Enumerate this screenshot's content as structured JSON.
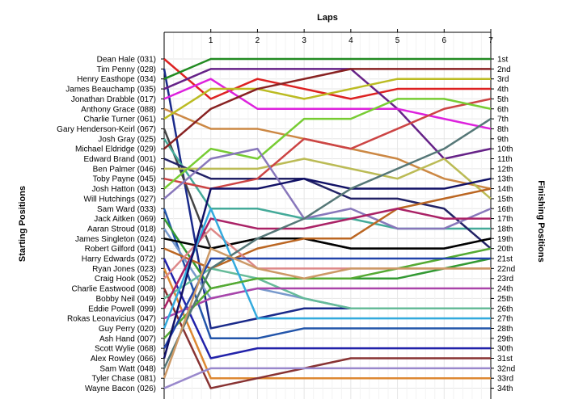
{
  "chart_data": {
    "type": "line",
    "title": "",
    "xlabel": "Laps",
    "ylabel_left": "Starting Positions",
    "ylabel_right": "Finishing Positions",
    "laps": [
      0,
      1,
      2,
      3,
      4,
      5,
      6,
      7
    ],
    "x_tick_labels": [
      "1",
      "2",
      "3",
      "4",
      "5",
      "6",
      "7"
    ],
    "finishing_labels": [
      "1st",
      "2nd",
      "3rd",
      "4th",
      "5th",
      "6th",
      "7th",
      "8th",
      "9th",
      "10th",
      "11th",
      "12th",
      "13th",
      "14th",
      "15th",
      "16th",
      "17th",
      "18th",
      "19th",
      "20th",
      "21st",
      "22nd",
      "23rd",
      "24th",
      "25th",
      "26th",
      "27th",
      "28th",
      "29th",
      "30th",
      "31st",
      "32nd",
      "33rd",
      "34th"
    ],
    "grid": true,
    "series": [
      {
        "name": "Dean Hale (031)",
        "color": "#dd2222",
        "positions": [
          1,
          5,
          3,
          4,
          5,
          4,
          4,
          4
        ]
      },
      {
        "name": "Tim Penny (028)",
        "color": "#1a2a8a",
        "positions": [
          2,
          28,
          27,
          26,
          26,
          26,
          26,
          26
        ]
      },
      {
        "name": "Henry Easthope (034)",
        "color": "#228b22",
        "positions": [
          3,
          1,
          1,
          1,
          1,
          1,
          1,
          1
        ]
      },
      {
        "name": "James Beauchamp (035)",
        "color": "#662288",
        "positions": [
          4,
          2,
          2,
          2,
          2,
          6,
          11,
          10
        ]
      },
      {
        "name": "Jonathan Drabble (017)",
        "color": "#dd22dd",
        "positions": [
          5,
          3,
          6,
          6,
          6,
          6,
          7,
          8
        ]
      },
      {
        "name": "Anthony Grace (088)",
        "color": "#cc8844",
        "positions": [
          6,
          8,
          8,
          9,
          10,
          11,
          13,
          14
        ]
      },
      {
        "name": "Charlie Turner (061)",
        "color": "#bbbb22",
        "positions": [
          7,
          4,
          4,
          5,
          4,
          3,
          3,
          3
        ]
      },
      {
        "name": "Gary Henderson-Keirl (067)",
        "color": "#444444",
        "positions": [
          8,
          20,
          19,
          19,
          20,
          20,
          20,
          19
        ]
      },
      {
        "name": "Josh Gray (025)",
        "color": "#44aa99",
        "positions": [
          9,
          16,
          16,
          17,
          17,
          18,
          18,
          18
        ]
      },
      {
        "name": "Michael Eldridge (029)",
        "color": "#882222",
        "positions": [
          10,
          6,
          4,
          3,
          2,
          2,
          2,
          2
        ]
      },
      {
        "name": "Edward Brand (001)",
        "color": "#222266",
        "positions": [
          11,
          13,
          13,
          13,
          15,
          15,
          16,
          20
        ]
      },
      {
        "name": "Ben Palmer (046)",
        "color": "#bbbb55",
        "positions": [
          12,
          12,
          12,
          11,
          12,
          13,
          11,
          15
        ]
      },
      {
        "name": "Toby Payne (045)",
        "color": "#cc4444",
        "positions": [
          13,
          14,
          13,
          9,
          10,
          8,
          6,
          5
        ]
      },
      {
        "name": "Josh Hatton (043)",
        "color": "#77cc33",
        "positions": [
          14,
          10,
          11,
          7,
          7,
          5,
          5,
          6
        ]
      },
      {
        "name": "Will Hutchings (027)",
        "color": "#8877bb",
        "positions": [
          15,
          11,
          10,
          17,
          16,
          18,
          18,
          16
        ]
      },
      {
        "name": "Sam Ward (033)",
        "color": "#2255aa",
        "positions": [
          16,
          29,
          29,
          28,
          28,
          28,
          28,
          28
        ]
      },
      {
        "name": "Jack Aitken (069)",
        "color": "#339933",
        "positions": [
          17,
          24,
          23,
          23,
          23,
          23,
          22,
          21
        ]
      },
      {
        "name": "Aaran Stroud (018)",
        "color": "#7799cc",
        "positions": [
          18,
          25,
          24,
          25,
          26,
          26,
          26,
          26
        ]
      },
      {
        "name": "James Singleton (024)",
        "color": "#000000",
        "positions": [
          19,
          20,
          19,
          19,
          20,
          20,
          20,
          19
        ]
      },
      {
        "name": "Robert Gilford (041)",
        "color": "#bb6622",
        "positions": [
          20,
          22,
          20,
          19,
          19,
          16,
          15,
          14
        ]
      },
      {
        "name": "Harry Edwards (072)",
        "color": "#2222aa",
        "positions": [
          21,
          31,
          30,
          30,
          30,
          30,
          30,
          30
        ]
      },
      {
        "name": "Ryan Jones (023)",
        "color": "#dd8833",
        "positions": [
          22,
          33,
          33,
          33,
          33,
          33,
          33,
          33
        ]
      },
      {
        "name": "Craig Hook (052)",
        "color": "#dd8888",
        "positions": [
          23,
          18,
          22,
          22,
          22,
          22,
          22,
          22
        ]
      },
      {
        "name": "Charlie Eastwood (008)",
        "color": "#883333",
        "positions": [
          24,
          34,
          33,
          32,
          31,
          31,
          31,
          31
        ]
      },
      {
        "name": "Bobby Neil (049)",
        "color": "#66bb99",
        "positions": [
          25,
          22,
          23,
          25,
          26,
          26,
          26,
          26
        ]
      },
      {
        "name": "Eddie Powell (099)",
        "color": "#aa2266",
        "positions": [
          26,
          17,
          18,
          18,
          17,
          16,
          17,
          17
        ]
      },
      {
        "name": "Rokas Leonavicius (047)",
        "color": "#aa44aa",
        "positions": [
          27,
          25,
          24,
          24,
          24,
          24,
          24,
          24
        ]
      },
      {
        "name": "Guy Perry (020)",
        "color": "#33aadd",
        "positions": [
          28,
          16,
          27,
          27,
          27,
          27,
          27,
          27
        ]
      },
      {
        "name": "Ash Hand (007)",
        "color": "#55aa33",
        "positions": [
          29,
          24,
          23,
          23,
          23,
          22,
          21,
          20
        ]
      },
      {
        "name": "Scott Wylie (068)",
        "color": "#2244aa",
        "positions": [
          30,
          21,
          21,
          21,
          21,
          21,
          21,
          21
        ]
      },
      {
        "name": "Alex Rowley (066)",
        "color": "#111166",
        "positions": [
          31,
          14,
          14,
          13,
          14,
          14,
          14,
          13
        ]
      },
      {
        "name": "Sam Watt (048)",
        "color": "#557777",
        "positions": [
          32,
          22,
          19,
          17,
          14,
          12,
          10,
          7
        ]
      },
      {
        "name": "Tyler Chase (081)",
        "color": "#cc9966",
        "positions": [
          33,
          20,
          22,
          23,
          22,
          22,
          22,
          22
        ]
      },
      {
        "name": "Wayne Bacon (026)",
        "color": "#9988cc",
        "positions": [
          34,
          32,
          32,
          32,
          32,
          32,
          32,
          32
        ]
      }
    ]
  }
}
